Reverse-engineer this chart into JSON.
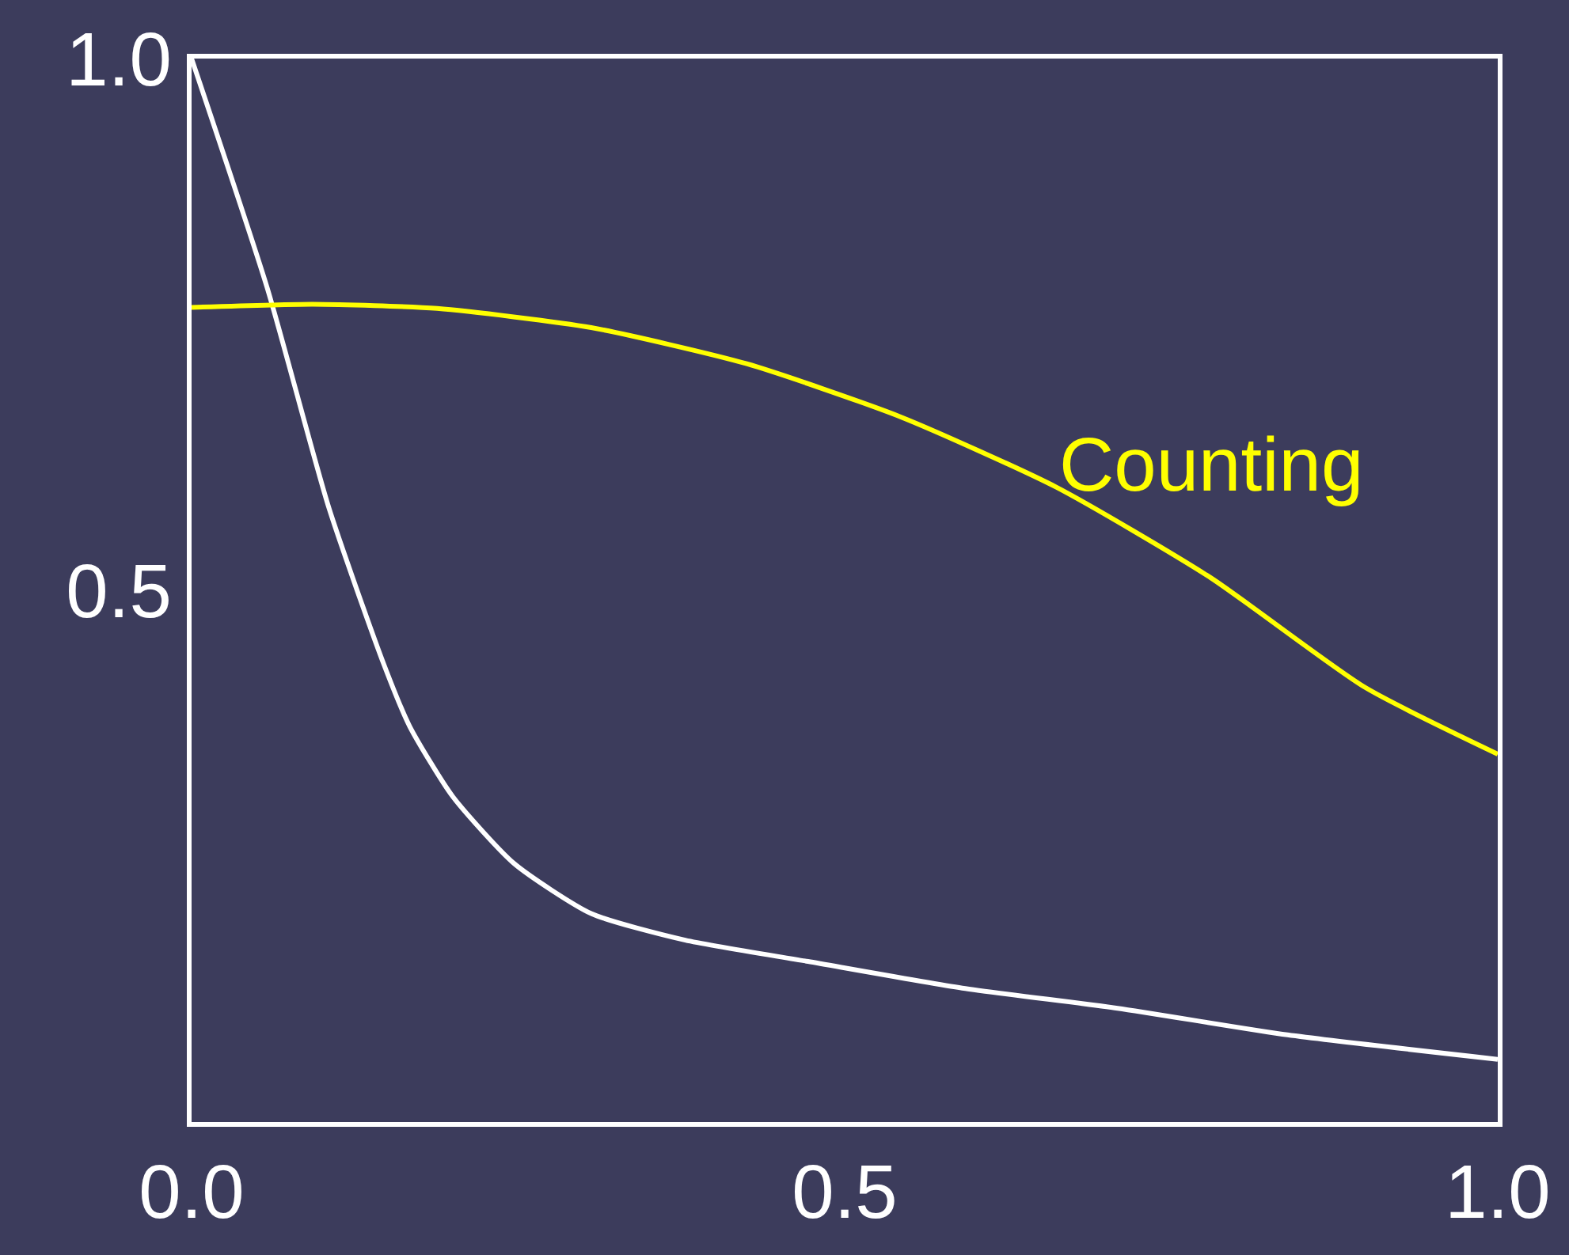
{
  "chart_data": {
    "type": "line",
    "xlim": [
      0,
      1
    ],
    "ylim": [
      0,
      1
    ],
    "xticks": [
      {
        "value": 0,
        "label": "0.0"
      },
      0.5,
      {
        "value": 1,
        "label": "1.0"
      }
    ],
    "yticks": [
      0.5,
      {
        "value": 1,
        "label": "1.0"
      }
    ],
    "grid": false,
    "legend": false,
    "marker": "none",
    "line_style": "solid",
    "series": [
      {
        "color": "#ffffff",
        "x": [
          0,
          0.058,
          0.105,
          0.147,
          0.167,
          0.2,
          0.247,
          0.306,
          0.378,
          0.472,
          0.59,
          0.709,
          0.839,
          1.0
        ],
        "values": [
          1.0,
          0.784,
          0.578,
          0.431,
          0.372,
          0.306,
          0.243,
          0.196,
          0.171,
          0.151,
          0.126,
          0.107,
          0.082,
          0.059
        ]
      },
      {
        "name": "Counting",
        "color": "#ffff00",
        "x": [
          0,
          0.093,
          0.188,
          0.306,
          0.425,
          0.543,
          0.662,
          0.78,
          0.898,
          1.0
        ],
        "values": [
          0.766,
          0.769,
          0.765,
          0.747,
          0.713,
          0.663,
          0.597,
          0.512,
          0.409,
          0.346
        ]
      }
    ]
  }
}
